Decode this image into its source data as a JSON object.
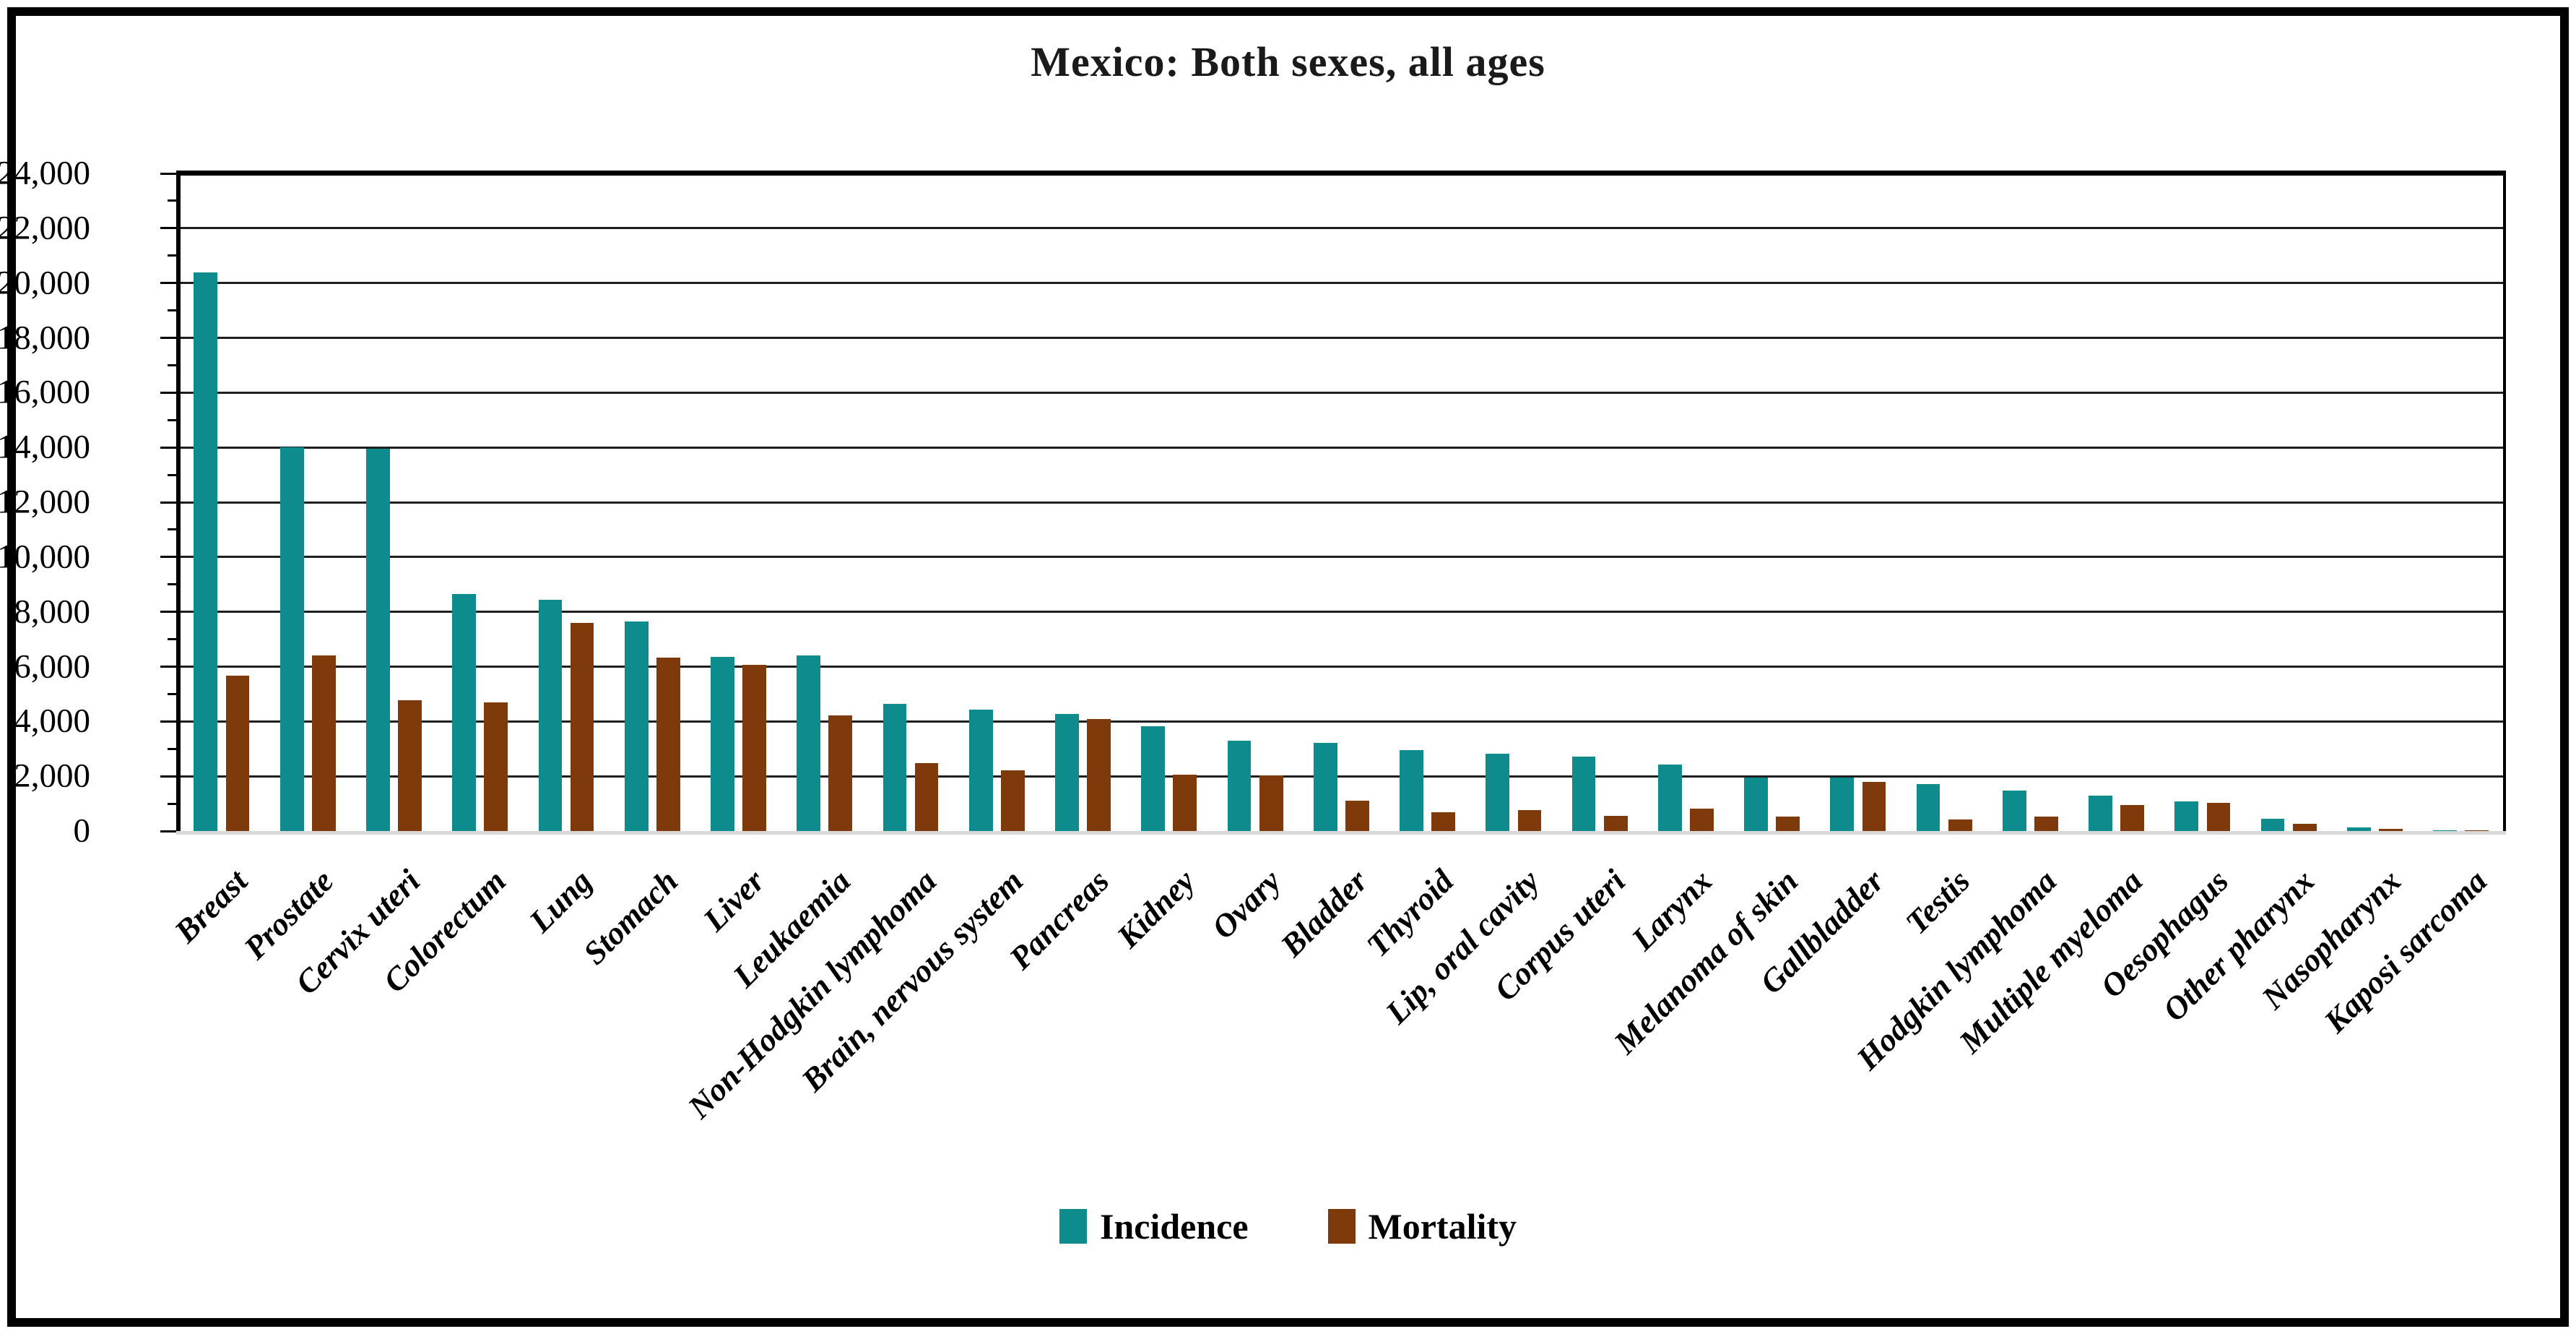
{
  "title": "Mexico: Both sexes, all ages",
  "colors": {
    "incidence": "#0e8b8d",
    "mortality": "#7f3a0b",
    "gridline": "#1f1f1f",
    "axis": "#000000",
    "baseline": "#d9d9d9"
  },
  "legend": [
    {
      "name": "Incidence",
      "color": "#0e8b8d"
    },
    {
      "name": "Mortality",
      "color": "#7f3a0b"
    }
  ],
  "chart_data": {
    "type": "bar",
    "title": "Mexico: Both sexes, all ages",
    "xlabel": "",
    "ylabel": "",
    "ylim": [
      0,
      24000
    ],
    "ytick_step": 2000,
    "grid": true,
    "legend_position": "bottom",
    "categories": [
      "Breast",
      "Prostate",
      "Cervix uteri",
      "Colorectum",
      "Lung",
      "Stomach",
      "Liver",
      "Leukaemia",
      "Non-Hodgkin lymphoma",
      "Brain, nervous system",
      "Pancreas",
      "Kidney",
      "Ovary",
      "Bladder",
      "Thyroid",
      "Lip, oral cavity",
      "Corpus uteri",
      "Larynx",
      "Melanoma of skin",
      "Gallbladder",
      "Testis",
      "Hodgkin lymphoma",
      "Multiple myeloma",
      "Oesophagus",
      "Other pharynx",
      "Nasopharynx",
      "Kaposi sarcoma"
    ],
    "series": [
      {
        "name": "Incidence",
        "values": [
          20400,
          14000,
          13960,
          8650,
          8450,
          7650,
          6350,
          6400,
          4630,
          4440,
          4270,
          3820,
          3300,
          3230,
          2950,
          2820,
          2730,
          2420,
          1950,
          1950,
          1710,
          1470,
          1290,
          1080,
          460,
          140,
          30
        ]
      },
      {
        "name": "Mortality",
        "values": [
          5680,
          6400,
          4770,
          4700,
          7600,
          6330,
          6060,
          4220,
          2480,
          2220,
          4080,
          2050,
          2040,
          1110,
          690,
          760,
          560,
          830,
          540,
          1800,
          410,
          540,
          940,
          1040,
          270,
          90,
          15
        ]
      }
    ]
  }
}
